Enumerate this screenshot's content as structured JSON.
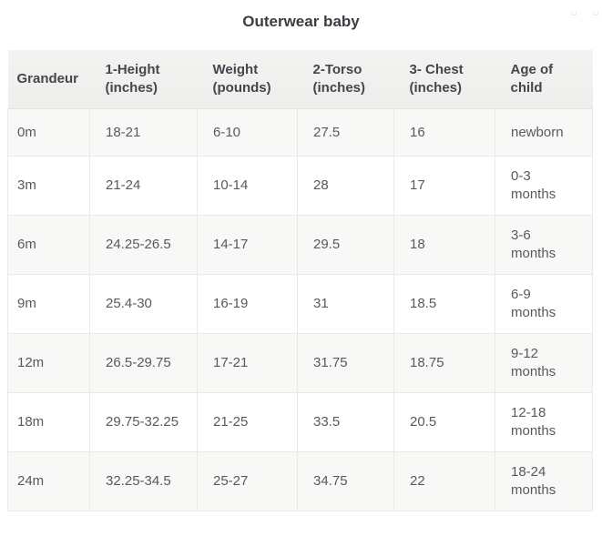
{
  "title": "Outerwear baby",
  "chart_data": {
    "type": "table",
    "title": "Outerwear baby",
    "columns": [
      "Grandeur",
      "1-Height\n(inches)",
      "Weight\n(pounds)",
      "2-Torso\n(inches)",
      "3- Chest\n(inches)",
      "Age of\nchild"
    ],
    "rows": [
      [
        "0m",
        "18-21",
        "6-10",
        "27.5",
        "16",
        "newborn"
      ],
      [
        "3m",
        "21-24",
        "10-14",
        "28",
        "17",
        "0-3\nmonths"
      ],
      [
        "6m",
        "24.25-26.5",
        "14-17",
        "29.5",
        "18",
        "3-6\nmonths"
      ],
      [
        "9m",
        "25.4-30",
        "16-19",
        "31",
        "18.5",
        "6-9\nmonths"
      ],
      [
        "12m",
        "26.5-29.75",
        "17-21",
        "31.75",
        "18.75",
        "9-12\nmonths"
      ],
      [
        "18m",
        "29.75-32.25",
        "21-25",
        "33.5",
        "20.5",
        "12-18\nmonths"
      ],
      [
        "24m",
        "32.25-34.5",
        "25-27",
        "34.75",
        "22",
        "18-24\nmonths"
      ]
    ],
    "layout": {
      "row_striping": "odd rows shaded",
      "header_position": "top"
    }
  },
  "colors": {
    "title_text": "#3b3c41",
    "header_background": "#f0f0ee",
    "header_text": "#45464b",
    "row_stripe_background": "#f8f8f6",
    "row_background": "#ffffff",
    "cell_text": "#58595d",
    "border": "#e9e9e8"
  }
}
